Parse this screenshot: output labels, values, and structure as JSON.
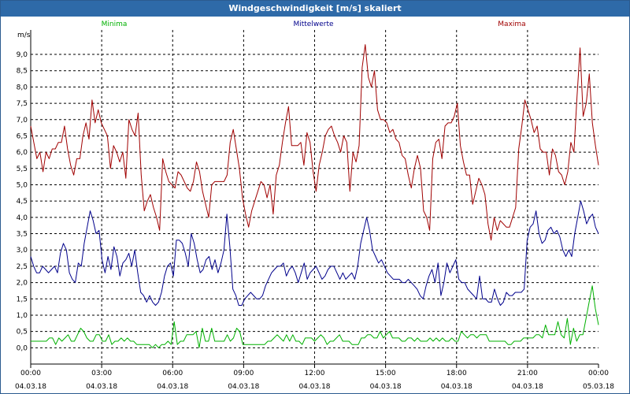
{
  "window": {
    "title": "Windgeschwindigkeit [m/s] skaliert"
  },
  "colors": {
    "min": "#00b000",
    "mean": "#00008b",
    "max": "#a00000",
    "grid": "#000000",
    "axis": "#000000"
  },
  "chart_data": {
    "type": "line",
    "title": "Windgeschwindigkeit [m/s] skaliert",
    "ylabel": "m/s",
    "ylim": [
      -0.5,
      9.75
    ],
    "yticks": [
      0,
      0.5,
      1,
      1.5,
      2,
      2.5,
      3,
      3.5,
      4,
      4.5,
      5,
      5.5,
      6,
      6.5,
      7,
      7.5,
      8,
      8.5,
      9
    ],
    "ytick_labels": [
      "0,0",
      "0,5",
      "1,0",
      "1,5",
      "2,0",
      "2,5",
      "3,0",
      "3,5",
      "4,0",
      "4,5",
      "5,0",
      "5,5",
      "6,0",
      "6,5",
      "7,0",
      "7,5",
      "8,0",
      "8,5",
      "9,0"
    ],
    "xlim_hours": [
      0,
      24
    ],
    "xticks": [
      {
        "hours": 0,
        "time": "00:00",
        "date": "04.03.18"
      },
      {
        "hours": 3,
        "time": "03:00",
        "date": "04.03.18"
      },
      {
        "hours": 6,
        "time": "06:00",
        "date": "04.03.18"
      },
      {
        "hours": 9,
        "time": "09:00",
        "date": "04.03.18"
      },
      {
        "hours": 12,
        "time": "12:00",
        "date": "04.03.18"
      },
      {
        "hours": 15,
        "time": "15:00",
        "date": "04.03.18"
      },
      {
        "hours": 18,
        "time": "18:00",
        "date": "04.03.18"
      },
      {
        "hours": 21,
        "time": "21:00",
        "date": "04.03.18"
      },
      {
        "hours": 24,
        "time": "00:00",
        "date": "05.03.18"
      }
    ],
    "legend": [
      "Minima",
      "Mittelwerte",
      "Maxima"
    ],
    "sample_interval_hours": 0.1667,
    "series": [
      {
        "name": "Minima",
        "color": "#00b000",
        "values": [
          0.2,
          0.2,
          0.2,
          0.2,
          0.2,
          0.2,
          0.3,
          0.3,
          0.1,
          0.3,
          0.2,
          0.3,
          0.4,
          0.2,
          0.2,
          0.4,
          0.6,
          0.5,
          0.3,
          0.2,
          0.2,
          0.4,
          0.4,
          0.2,
          0.2,
          0.4,
          0.1,
          0.2,
          0.2,
          0.3,
          0.2,
          0.3,
          0.2,
          0.2,
          0.1,
          0.1,
          0.1,
          0.1,
          0.1,
          0.0,
          0.1,
          0.0,
          0.1,
          0.1,
          0.2,
          0.1,
          0.8,
          0.1,
          0.2,
          0.2,
          0.4,
          0.4,
          0.4,
          0.5,
          0.0,
          0.6,
          0.2,
          0.2,
          0.6,
          0.2,
          0.2,
          0.2,
          0.2,
          0.4,
          0.2,
          0.3,
          0.6,
          0.5,
          0.1,
          0.1,
          0.1,
          0.1,
          0.1,
          0.1,
          0.1,
          0.1,
          0.2,
          0.2,
          0.3,
          0.4,
          0.3,
          0.2,
          0.4,
          0.2,
          0.4,
          0.2,
          0.2,
          0.1,
          0.3,
          0.3,
          0.3,
          0.2,
          0.3,
          0.4,
          0.3,
          0.1,
          0.2,
          0.2,
          0.3,
          0.4,
          0.2,
          0.2,
          0.2,
          0.1,
          0.1,
          0.1,
          0.3,
          0.3,
          0.4,
          0.4,
          0.3,
          0.3,
          0.5,
          0.3,
          0.4,
          0.5,
          0.3,
          0.3,
          0.3,
          0.2,
          0.2,
          0.3,
          0.3,
          0.2,
          0.3,
          0.2,
          0.2,
          0.2,
          0.3,
          0.2,
          0.3,
          0.2,
          0.3,
          0.2,
          0.2,
          0.3,
          0.2,
          0.2,
          0.5,
          0.4,
          0.3,
          0.4,
          0.4,
          0.3,
          0.4,
          0.4,
          0.4,
          0.2,
          0.2,
          0.2,
          0.2,
          0.2,
          0.2,
          0.1,
          0.1,
          0.2,
          0.2,
          0.2,
          0.3,
          0.3,
          0.3,
          0.3,
          0.4,
          0.4,
          0.3,
          0.7,
          0.4,
          0.4,
          0.4,
          0.8,
          0.4,
          0.3,
          0.9,
          0.1,
          0.6,
          0.2,
          0.4,
          0.4,
          0.9,
          1.4,
          1.9,
          1.2,
          0.7
        ]
      },
      {
        "name": "Mittelwerte",
        "color": "#00008b",
        "values": [
          2.8,
          2.5,
          2.3,
          2.3,
          2.5,
          2.4,
          2.3,
          2.4,
          2.5,
          2.3,
          2.9,
          3.2,
          3.0,
          2.3,
          2.1,
          2.0,
          2.6,
          2.5,
          3.2,
          3.7,
          4.2,
          3.9,
          3.5,
          3.6,
          2.7,
          2.3,
          2.8,
          2.4,
          3.1,
          2.8,
          2.2,
          2.6,
          2.7,
          2.9,
          2.5,
          3.0,
          2.3,
          1.7,
          1.6,
          1.4,
          1.6,
          1.4,
          1.3,
          1.4,
          1.7,
          2.2,
          2.5,
          2.6,
          2.2,
          3.3,
          3.3,
          3.2,
          2.9,
          2.5,
          3.5,
          3.2,
          2.7,
          2.3,
          2.4,
          2.7,
          2.8,
          2.4,
          2.7,
          2.3,
          2.6,
          3.0,
          4.1,
          3.1,
          1.8,
          1.6,
          1.3,
          1.3,
          1.5,
          1.6,
          1.7,
          1.6,
          1.5,
          1.5,
          1.6,
          1.9,
          2.1,
          2.3,
          2.4,
          2.5,
          2.5,
          2.6,
          2.2,
          2.4,
          2.5,
          2.3,
          2.0,
          2.3,
          2.6,
          2.1,
          2.3,
          2.4,
          2.5,
          2.3,
          2.1,
          2.2,
          2.4,
          2.5,
          2.5,
          2.3,
          2.1,
          2.3,
          2.1,
          2.2,
          2.3,
          2.1,
          2.5,
          3.2,
          3.6,
          4.0,
          3.6,
          3.0,
          2.8,
          2.6,
          2.7,
          2.5,
          2.3,
          2.2,
          2.1,
          2.1,
          2.1,
          2.0,
          2.0,
          2.1,
          2.0,
          1.9,
          1.8,
          1.6,
          1.5,
          1.9,
          2.2,
          2.4,
          2.0,
          2.6,
          1.6,
          2.0,
          2.6,
          2.3,
          2.5,
          2.7,
          2.1,
          2.0,
          2.0,
          1.8,
          1.7,
          1.6,
          1.5,
          2.2,
          1.5,
          1.5,
          1.4,
          1.4,
          1.8,
          1.5,
          1.3,
          1.4,
          1.7,
          1.6,
          1.6,
          1.7,
          1.7,
          1.7,
          1.8,
          3.3,
          3.7,
          3.8,
          4.2,
          3.5,
          3.2,
          3.3,
          3.6,
          3.7,
          3.5,
          3.6,
          3.4,
          3.0,
          2.8,
          3.0,
          2.8,
          3.5,
          4.0,
          4.5,
          4.2,
          3.8,
          4.0,
          4.1,
          3.7,
          3.5
        ]
      },
      {
        "name": "Maxima",
        "color": "#a00000",
        "values": [
          6.8,
          6.3,
          5.8,
          6.0,
          5.4,
          6.0,
          5.8,
          6.1,
          6.1,
          6.3,
          6.3,
          6.8,
          6.1,
          5.6,
          5.3,
          5.8,
          5.8,
          6.5,
          6.9,
          6.4,
          7.6,
          6.9,
          7.3,
          6.9,
          6.7,
          6.5,
          5.5,
          6.2,
          6.0,
          5.7,
          6.0,
          5.2,
          7.0,
          6.7,
          6.5,
          7.2,
          5.3,
          4.2,
          4.5,
          4.7,
          4.3,
          4.0,
          3.6,
          5.8,
          5.4,
          5.1,
          5.0,
          4.9,
          5.4,
          5.3,
          5.1,
          4.9,
          4.8,
          5.1,
          5.7,
          5.4,
          4.8,
          4.4,
          4.0,
          5.0,
          5.1,
          5.1,
          5.1,
          5.1,
          5.3,
          6.3,
          6.7,
          6.1,
          5.5,
          4.6,
          4.1,
          3.7,
          4.2,
          4.5,
          4.8,
          5.1,
          5.0,
          4.6,
          5.0,
          4.1,
          5.3,
          5.6,
          6.3,
          6.9,
          7.4,
          6.2,
          6.2,
          6.2,
          6.3,
          5.6,
          6.6,
          6.3,
          5.4,
          4.8,
          5.6,
          6.0,
          6.5,
          6.7,
          6.8,
          6.5,
          6.3,
          6.0,
          6.5,
          6.3,
          4.8,
          6.0,
          5.7,
          6.2,
          8.6,
          9.3,
          8.3,
          8.0,
          8.5,
          7.3,
          7.0,
          7.0,
          6.9,
          6.6,
          6.7,
          6.4,
          6.3,
          5.9,
          5.8,
          5.3,
          4.9,
          5.5,
          5.9,
          5.5,
          4.2,
          4.0,
          3.6,
          5.8,
          6.3,
          6.4,
          5.8,
          6.8,
          6.9,
          6.9,
          7.1,
          7.5,
          6.2,
          5.7,
          5.3,
          5.3,
          4.4,
          4.8,
          5.2,
          5.0,
          4.7,
          3.8,
          3.3,
          4.0,
          3.6,
          3.9,
          3.8,
          3.7,
          3.7,
          4.0,
          4.3,
          6.1,
          6.8,
          7.6,
          7.3,
          7.0,
          6.6,
          6.8,
          6.1,
          6.0,
          6.0,
          5.3,
          6.1,
          5.9,
          5.4,
          5.3,
          5.0,
          5.4,
          6.3,
          6.0,
          7.7,
          9.2,
          7.1,
          7.5,
          8.4,
          6.9,
          6.2,
          5.6
        ]
      }
    ]
  }
}
